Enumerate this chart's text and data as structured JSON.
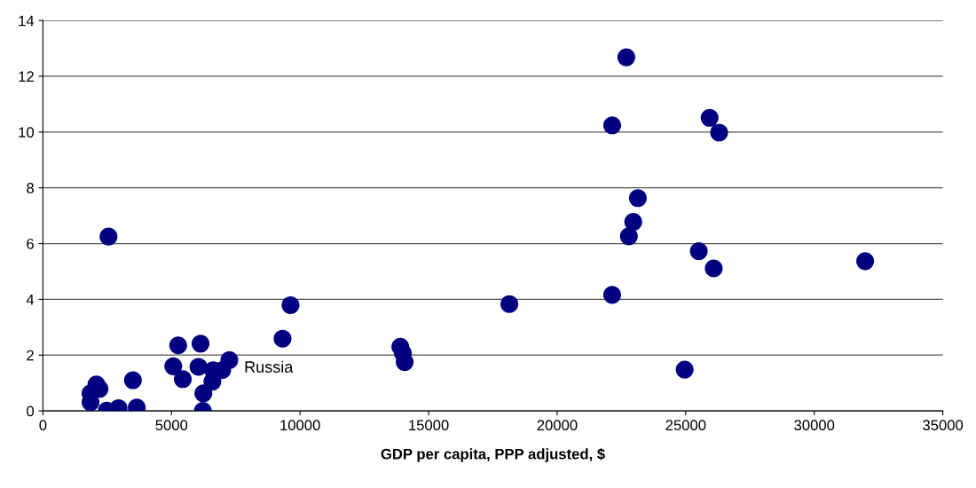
{
  "chart_data": {
    "type": "scatter",
    "xlabel": "GDP per capita, PPP adjusted, $",
    "x": [
      2550,
      1850,
      1850,
      2080,
      2200,
      2480,
      2940,
      3500,
      3650,
      5070,
      5260,
      5440,
      6050,
      6130,
      6220,
      6240,
      6590,
      6620,
      6970,
      7250,
      9320,
      9630,
      13900,
      14000,
      14070,
      18140,
      22690,
      22140,
      25930,
      26300,
      23140,
      22960,
      22790,
      25510,
      26090,
      31980,
      22140,
      24960
    ],
    "series": [
      {
        "color": "#000080",
        "values": [
          6.25,
          0.31,
          0.63,
          0.95,
          0.79,
          0.01,
          0.1,
          1.1,
          0.12,
          1.6,
          2.35,
          1.14,
          1.58,
          2.41,
          0.0,
          0.63,
          1.05,
          1.46,
          1.46,
          1.82,
          2.59,
          3.79,
          2.3,
          2.07,
          1.75,
          3.83,
          12.68,
          10.24,
          10.51,
          9.98,
          7.63,
          6.78,
          6.26,
          5.73,
          5.11,
          5.37,
          4.16,
          1.48
        ]
      }
    ],
    "annotations": [
      {
        "text": "Russia",
        "x": 7250,
        "y": 1.82
      }
    ],
    "xlim": [
      0,
      35000
    ],
    "xticks": [
      0,
      5000,
      10000,
      15000,
      20000,
      25000,
      30000,
      35000
    ],
    "ylim": [
      0,
      14
    ],
    "yticks": [
      0,
      2,
      4,
      6,
      8,
      10,
      12,
      14
    ],
    "grid": "y",
    "marker": "circle"
  }
}
